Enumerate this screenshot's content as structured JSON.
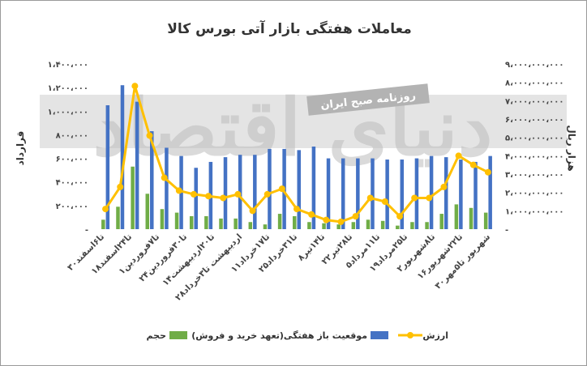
{
  "chart_data": {
    "type": "bar",
    "title": "معاملات هفتگی بازار آتی بورس کالا",
    "ylabel_left": "قرارداد",
    "ylabel_right": "هزار ریال",
    "ylim_left": [
      0,
      1400000
    ],
    "ylim_right": [
      0,
      9000000000
    ],
    "yticks_left": [
      "-",
      "۲۰۰،۰۰۰",
      "۴۰۰،۰۰۰",
      "۶۰۰،۰۰۰",
      "۸۰۰،۰۰۰",
      "۱،۰۰۰،۰۰۰",
      "۱،۲۰۰،۰۰۰",
      "۱،۴۰۰،۰۰۰"
    ],
    "yticks_right": [
      "-",
      "۱،۰۰۰،۰۰۰،۰۰۰",
      "۲،۰۰۰،۰۰۰،۰۰۰",
      "۳،۰۰۰،۰۰۰،۰۰۰",
      "۴،۰۰۰،۰۰۰،۰۰۰",
      "۵،۰۰۰،۰۰۰،۰۰۰",
      "۶،۰۰۰،۰۰۰،۰۰۰",
      "۷،۰۰۰،۰۰۰،۰۰۰",
      "۸،۰۰۰،۰۰۰،۰۰۰",
      "۹،۰۰۰،۰۰۰،۰۰۰"
    ],
    "x_labels": [
      "۳۰تا۶اسفند",
      "۱۸تا۲۴اسفند",
      "۱تا۷فروردین",
      "۲۴تا۳۰فروردین",
      "۱۴تا۲۰اردیبهشت",
      "۲۸اردیبهشت تا۳خرداد",
      "۱۱تا۱۷خرداد",
      "۲۵تا۳۱خرداد",
      "۸تا۱۴تیر",
      "۲۲تا۲۸تیر",
      "۵تا۱۱مرداد",
      "۱۹تا۲۵مرداد",
      "۲تا۸شهریور",
      "۱۶تا۲۲شهریور",
      "۳۰شهریور تا۵مهر"
    ],
    "legend": [
      "حجم",
      "موقعیت باز هفتگی(تعهد خرید و فروش)",
      "ارزش"
    ],
    "colors": {
      "volume": "#70ad47",
      "open_interest": "#4472c4",
      "value": "#ffc000"
    },
    "series": [
      {
        "name": "حجم",
        "axis": "left",
        "values": [
          80000,
          190000,
          530000,
          300000,
          170000,
          140000,
          110000,
          110000,
          90000,
          90000,
          60000,
          40000,
          130000,
          110000,
          60000,
          50000,
          40000,
          60000,
          80000,
          70000,
          30000,
          60000,
          60000,
          130000,
          210000,
          180000,
          140000
        ]
      },
      {
        "name": "موقعیت باز هفتگی(تعهد خرید و فروش)",
        "axis": "left",
        "values": [
          1050000,
          1220000,
          1080000,
          830000,
          690000,
          620000,
          520000,
          570000,
          610000,
          630000,
          630000,
          680000,
          680000,
          670000,
          700000,
          600000,
          600000,
          600000,
          600000,
          590000,
          590000,
          600000,
          620000,
          610000,
          590000,
          570000,
          620000
        ]
      },
      {
        "name": "ارزش",
        "axis": "right",
        "values": [
          1100000000,
          2300000000,
          7800000000,
          5100000000,
          2800000000,
          2100000000,
          1900000000,
          1800000000,
          1700000000,
          1900000000,
          1000000000,
          1900000000,
          2200000000,
          1100000000,
          800000000,
          500000000,
          400000000,
          700000000,
          1700000000,
          1500000000,
          700000000,
          1700000000,
          1700000000,
          2300000000,
          4000000000,
          3500000000,
          3100000000
        ]
      }
    ]
  },
  "watermark": {
    "banner_text": "روزنامه صبح ایران",
    "big_text": "دنیای اقتصاد"
  }
}
